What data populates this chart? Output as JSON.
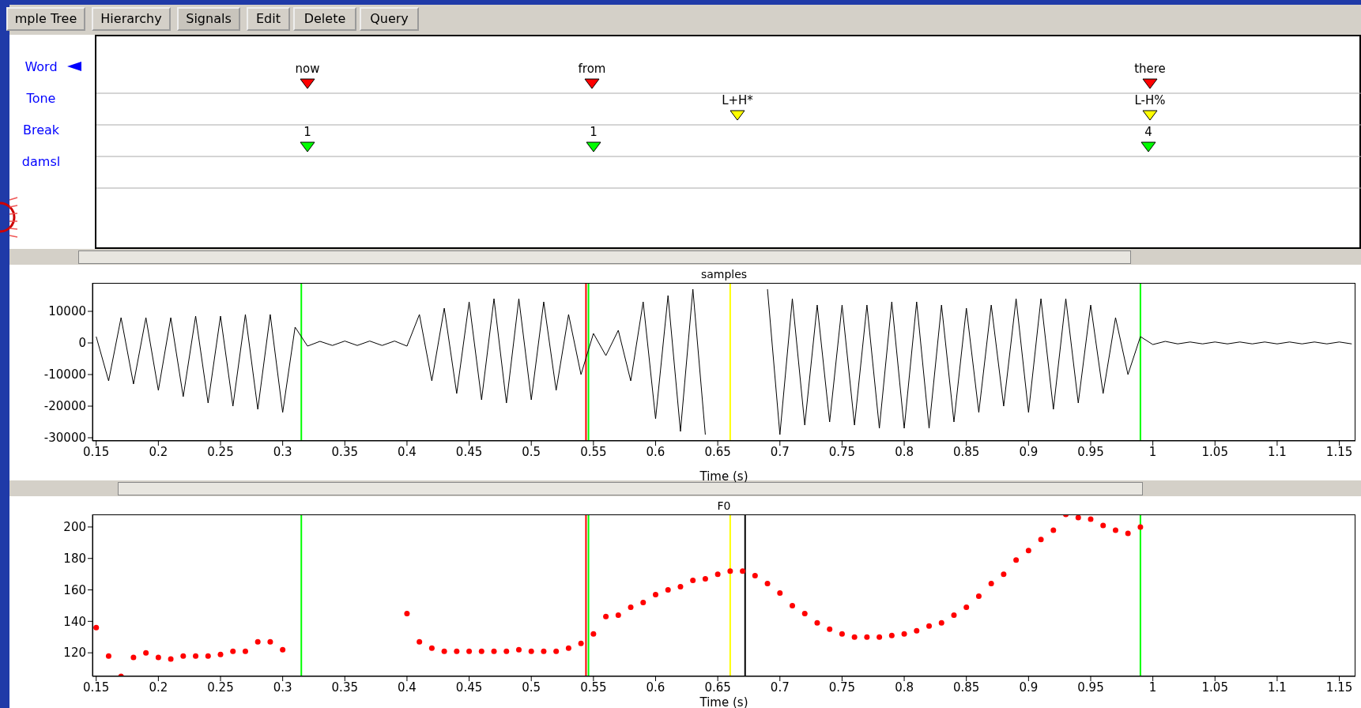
{
  "chart_data": [
    {
      "type": "other",
      "categories": [
        "Word",
        "Tone",
        "Break",
        "damsl"
      ],
      "colors": [
        "#ff0000",
        "#ffff00",
        "#00ff00",
        null
      ],
      "annotations": [
        "mple Tree",
        "Hierarchy",
        "Signals",
        "Edit",
        "Delete",
        "Query",
        "now",
        "from",
        "there",
        "L+H*",
        "L-H%",
        "1",
        "1",
        "4"
      ]
    },
    {
      "type": "line",
      "title": "samples",
      "xlabel": "Time (s)",
      "color": "#000000",
      "marker": "none",
      "grid": false,
      "x": [
        0.15,
        0.16,
        0.17,
        0.18,
        0.19,
        0.2,
        0.21,
        0.22,
        0.23,
        0.24,
        0.25,
        0.26,
        0.27,
        0.28,
        0.29,
        0.3,
        0.31,
        0.32,
        0.33,
        0.34,
        0.35,
        0.36,
        0.37,
        0.38,
        0.39,
        0.4,
        0.41,
        0.42,
        0.43,
        0.44,
        0.45,
        0.46,
        0.47,
        0.48,
        0.49,
        0.5,
        0.51,
        0.52,
        0.53,
        0.54,
        0.55,
        0.56,
        0.57,
        0.58,
        0.59,
        0.6,
        0.61,
        0.62,
        0.63,
        0.64,
        0.65,
        0.66,
        0.67,
        0.68,
        0.69,
        0.7,
        0.71,
        0.72,
        0.73,
        0.74,
        0.75,
        0.76,
        0.77,
        0.78,
        0.79,
        0.8,
        0.81,
        0.82,
        0.83,
        0.84,
        0.85,
        0.86,
        0.87,
        0.88,
        0.89,
        0.9,
        0.91,
        0.92,
        0.93,
        0.94,
        0.95,
        0.96,
        0.97,
        0.98,
        0.99,
        1.0,
        1.01,
        1.02,
        1.03,
        1.04,
        1.05,
        1.06,
        1.07,
        1.08,
        1.09,
        1.1,
        1.11,
        1.12,
        1.13,
        1.14,
        1.15,
        1.16
      ],
      "values": [
        2000,
        -12000,
        8000,
        -13000,
        8000,
        -15000,
        8000,
        -17000,
        8500,
        -19000,
        8500,
        -20000,
        9000,
        -21000,
        9000,
        -22000,
        5000,
        -1000,
        500,
        -800,
        600,
        -800,
        600,
        -800,
        600,
        -1000,
        9000,
        -12000,
        11000,
        -16000,
        13000,
        -18000,
        14000,
        -19000,
        14000,
        -18000,
        13000,
        -15000,
        9000,
        -10000,
        3000,
        -4000,
        4000,
        -12000,
        13000,
        -24000,
        15000,
        -28000,
        17000,
        -29000,
        null,
        null,
        null,
        null,
        17000,
        -29000,
        14000,
        -26000,
        12000,
        -25000,
        12000,
        -26000,
        12000,
        -27000,
        13000,
        -27000,
        13000,
        -27000,
        12000,
        -25000,
        11000,
        -22000,
        12000,
        -20000,
        14000,
        -22000,
        14000,
        -21000,
        14000,
        -19000,
        12000,
        -16000,
        8000,
        -10000,
        2000,
        -500,
        500,
        -300,
        300,
        -300,
        300,
        -300,
        300,
        -300,
        300,
        -300,
        300,
        -300,
        300,
        -300,
        300,
        -300
      ],
      "xlim": [
        0.147,
        1.163
      ],
      "xticks": [
        0.15,
        0.2,
        0.25,
        0.3,
        0.35,
        0.4,
        0.45,
        0.5,
        0.55,
        0.6,
        0.65,
        0.7,
        0.75,
        0.8,
        0.85,
        0.9,
        0.95,
        1,
        1.05,
        1.1,
        1.15
      ],
      "ylim": [
        -31000,
        19000
      ],
      "yticks": [
        -30000,
        -20000,
        -10000,
        0,
        10000
      ],
      "ref_lines": [
        {
          "axis": "x",
          "value": 0.315,
          "color": "#00ff00"
        },
        {
          "axis": "x",
          "value": 0.544,
          "color": "#ff0000"
        },
        {
          "axis": "x",
          "value": 0.546,
          "color": "#00ff00"
        },
        {
          "axis": "x",
          "value": 0.66,
          "color": "#ffff00"
        },
        {
          "axis": "x",
          "value": 0.99,
          "color": "#00ff00"
        }
      ]
    },
    {
      "type": "scatter",
      "title": "F0",
      "xlabel": "Time (s)",
      "color": "#ff0000",
      "marker": "circle",
      "grid": false,
      "x": [
        0.15,
        0.16,
        0.17,
        0.18,
        0.19,
        0.2,
        0.21,
        0.22,
        0.23,
        0.24,
        0.25,
        0.26,
        0.27,
        0.28,
        0.29,
        0.3,
        0.4,
        0.41,
        0.42,
        0.43,
        0.44,
        0.45,
        0.46,
        0.47,
        0.48,
        0.49,
        0.5,
        0.51,
        0.52,
        0.53,
        0.54,
        0.55,
        0.56,
        0.57,
        0.58,
        0.59,
        0.6,
        0.61,
        0.62,
        0.63,
        0.64,
        0.65,
        0.66,
        0.67,
        0.68,
        0.69,
        0.7,
        0.71,
        0.72,
        0.73,
        0.74,
        0.75,
        0.76,
        0.77,
        0.78,
        0.79,
        0.8,
        0.81,
        0.82,
        0.83,
        0.84,
        0.85,
        0.86,
        0.87,
        0.88,
        0.89,
        0.9,
        0.91,
        0.92,
        0.93,
        0.94,
        0.95,
        0.96,
        0.97,
        0.98,
        0.99
      ],
      "values": [
        136,
        118,
        105,
        117,
        120,
        117,
        116,
        118,
        118,
        118,
        119,
        121,
        121,
        127,
        127,
        122,
        145,
        127,
        123,
        121,
        121,
        121,
        121,
        121,
        121,
        122,
        121,
        121,
        121,
        123,
        126,
        132,
        143,
        144,
        149,
        152,
        157,
        160,
        162,
        166,
        167,
        170,
        172,
        172,
        169,
        164,
        158,
        150,
        145,
        139,
        135,
        132,
        130,
        130,
        130,
        131,
        132,
        134,
        137,
        139,
        144,
        149,
        156,
        164,
        170,
        179,
        185,
        192,
        198,
        208,
        206,
        205,
        201,
        198,
        196,
        200
      ],
      "xlim": [
        0.147,
        1.163
      ],
      "xticks": [
        0.15,
        0.2,
        0.25,
        0.3,
        0.35,
        0.4,
        0.45,
        0.5,
        0.55,
        0.6,
        0.65,
        0.7,
        0.75,
        0.8,
        0.85,
        0.9,
        0.95,
        1,
        1.05,
        1.1,
        1.15
      ],
      "ylim": [
        105,
        208
      ],
      "yticks": [
        120,
        140,
        160,
        180,
        200
      ],
      "ref_lines": [
        {
          "axis": "x",
          "value": 0.315,
          "color": "#00ff00"
        },
        {
          "axis": "x",
          "value": 0.544,
          "color": "#ff0000"
        },
        {
          "axis": "x",
          "value": 0.546,
          "color": "#00ff00"
        },
        {
          "axis": "x",
          "value": 0.66,
          "color": "#ffff00"
        },
        {
          "axis": "x",
          "value": 0.672,
          "color": "#000000"
        },
        {
          "axis": "x",
          "value": 0.99,
          "color": "#00ff00"
        }
      ]
    }
  ]
}
